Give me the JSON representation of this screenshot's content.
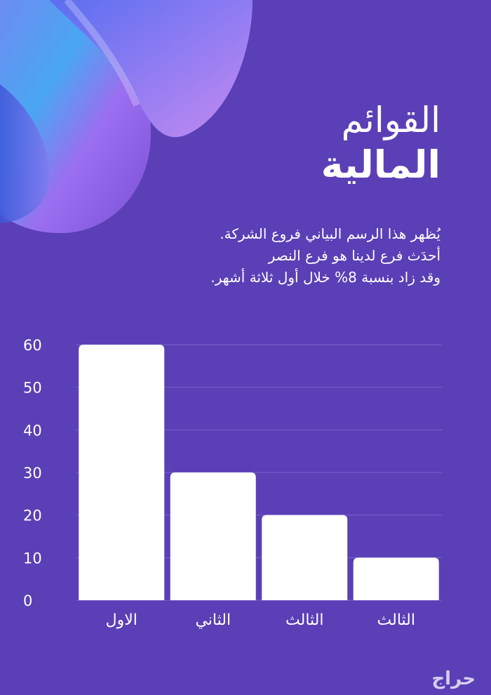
{
  "header": {
    "title_line1": "القوائم",
    "title_line2": "المالية"
  },
  "description": [
    "يُظهر هذا الرسم البياني فروع الشركة.",
    "أحدَث فرع لدينا هو فرع النصر",
    "وقد زاد بنسبة 8% خلال أول ثلاثة أشهر."
  ],
  "watermark": "حراج",
  "colors": {
    "background": "#5b3fb6",
    "bar": "#ffffff",
    "grid": "#7a62cc",
    "text": "#ffffff"
  },
  "chart_data": {
    "type": "bar",
    "categories": [
      "الاول",
      "الثاني",
      "الثالث",
      "الثالث"
    ],
    "values": [
      60,
      30,
      20,
      10
    ],
    "title": "",
    "xlabel": "",
    "ylabel": "",
    "ylim": [
      0,
      60
    ],
    "yticks": [
      0,
      10,
      20,
      30,
      40,
      50,
      60
    ],
    "grid": true,
    "legend": "none"
  }
}
